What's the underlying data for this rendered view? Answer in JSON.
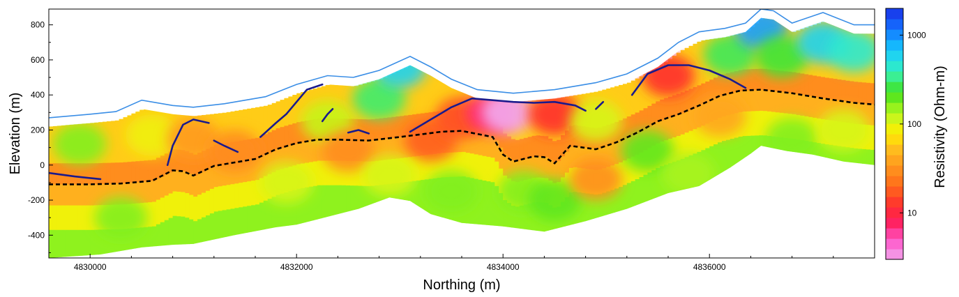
{
  "chart_data": {
    "type": "heatmap",
    "xlabel": "Northing (m)",
    "ylabel": "Elevation (m)",
    "colorbar_label": "Resistivity (Ohm-m)",
    "colorbar_scale": "log",
    "colorbar_range": [
      3,
      2000
    ],
    "colorbar_ticks": [
      {
        "value": 10,
        "label": "10"
      },
      {
        "value": 100,
        "label": "100"
      },
      {
        "value": 1000,
        "label": "1000"
      }
    ],
    "xlim": [
      4829600,
      4837600
    ],
    "ylim": [
      -530,
      890
    ],
    "x_ticks": [
      {
        "value": 4830000,
        "label": "4830000"
      },
      {
        "value": 4832000,
        "label": "4832000"
      },
      {
        "value": 4834000,
        "label": "4834000"
      },
      {
        "value": 4836000,
        "label": "4836000"
      }
    ],
    "y_ticks": [
      {
        "value": 800,
        "label": "800"
      },
      {
        "value": 600,
        "label": "600"
      },
      {
        "value": 400,
        "label": "400"
      },
      {
        "value": 200,
        "label": "200"
      },
      {
        "value": 0,
        "label": "0"
      },
      {
        "value": -200,
        "label": "-200"
      },
      {
        "value": -400,
        "label": "-400"
      }
    ],
    "grid": false,
    "colors": {
      "topography": "#3a8ee6",
      "interpreted_lines": "#1a1a8c",
      "dashed_boundary": "#000000"
    },
    "topography": [
      [
        4829600,
        270
      ],
      [
        4830000,
        290
      ],
      [
        4830250,
        305
      ],
      [
        4830500,
        370
      ],
      [
        4830800,
        340
      ],
      [
        4831000,
        330
      ],
      [
        4831300,
        350
      ],
      [
        4831700,
        390
      ],
      [
        4832000,
        460
      ],
      [
        4832300,
        510
      ],
      [
        4832550,
        500
      ],
      [
        4832800,
        540
      ],
      [
        4833100,
        620
      ],
      [
        4833300,
        560
      ],
      [
        4833500,
        490
      ],
      [
        4833750,
        430
      ],
      [
        4834100,
        410
      ],
      [
        4834500,
        430
      ],
      [
        4834900,
        470
      ],
      [
        4835200,
        520
      ],
      [
        4835500,
        610
      ],
      [
        4835700,
        700
      ],
      [
        4835900,
        760
      ],
      [
        4836150,
        780
      ],
      [
        4836350,
        810
      ],
      [
        4836500,
        890
      ],
      [
        4836620,
        880
      ],
      [
        4836800,
        810
      ],
      [
        4837100,
        870
      ],
      [
        4837400,
        800
      ],
      [
        4837600,
        800
      ]
    ],
    "section_bottom": [
      [
        4829600,
        -530
      ],
      [
        4830100,
        -510
      ],
      [
        4830500,
        -470
      ],
      [
        4830800,
        -455
      ],
      [
        4831000,
        -450
      ],
      [
        4831400,
        -400
      ],
      [
        4831800,
        -355
      ],
      [
        4832000,
        -340
      ],
      [
        4832200,
        -310
      ],
      [
        4832600,
        -250
      ],
      [
        4832900,
        -185
      ],
      [
        4833100,
        -205
      ],
      [
        4833300,
        -280
      ],
      [
        4833600,
        -330
      ],
      [
        4834000,
        -350
      ],
      [
        4834400,
        -380
      ],
      [
        4834800,
        -320
      ],
      [
        4835200,
        -250
      ],
      [
        4835600,
        -160
      ],
      [
        4835900,
        -120
      ],
      [
        4836200,
        -15
      ],
      [
        4836400,
        65
      ],
      [
        4836500,
        110
      ],
      [
        4836750,
        80
      ],
      [
        4837000,
        60
      ],
      [
        4837300,
        20
      ],
      [
        4837600,
        0
      ]
    ],
    "dashed_boundary": [
      [
        4829600,
        -110
      ],
      [
        4830000,
        -110
      ],
      [
        4830300,
        -105
      ],
      [
        4830600,
        -90
      ],
      [
        4830800,
        -30
      ],
      [
        4830900,
        -35
      ],
      [
        4831000,
        -60
      ],
      [
        4831200,
        -5
      ],
      [
        4831400,
        15
      ],
      [
        4831600,
        35
      ],
      [
        4831800,
        90
      ],
      [
        4832000,
        125
      ],
      [
        4832200,
        145
      ],
      [
        4832400,
        145
      ],
      [
        4832700,
        140
      ],
      [
        4833000,
        160
      ],
      [
        4833200,
        175
      ],
      [
        4833400,
        190
      ],
      [
        4833600,
        195
      ],
      [
        4833900,
        160
      ],
      [
        4834000,
        60
      ],
      [
        4834100,
        20
      ],
      [
        4834300,
        50
      ],
      [
        4834400,
        45
      ],
      [
        4834500,
        10
      ],
      [
        4834650,
        110
      ],
      [
        4834900,
        90
      ],
      [
        4835100,
        130
      ],
      [
        4835300,
        185
      ],
      [
        4835500,
        250
      ],
      [
        4835700,
        290
      ],
      [
        4835900,
        340
      ],
      [
        4836100,
        395
      ],
      [
        4836300,
        425
      ],
      [
        4836500,
        430
      ],
      [
        4836800,
        410
      ],
      [
        4837100,
        380
      ],
      [
        4837400,
        355
      ],
      [
        4837600,
        345
      ]
    ],
    "interpreted_lines": [
      [
        [
          4829600,
          -45
        ],
        [
          4829850,
          -65
        ],
        [
          4830100,
          -80
        ]
      ],
      [
        [
          4830750,
          0
        ],
        [
          4830800,
          110
        ],
        [
          4830900,
          230
        ],
        [
          4831000,
          260
        ],
        [
          4831150,
          240
        ]
      ],
      [
        [
          4831200,
          140
        ],
        [
          4831300,
          110
        ],
        [
          4831430,
          75
        ]
      ],
      [
        [
          4831650,
          160
        ],
        [
          4831800,
          240
        ],
        [
          4831900,
          290
        ],
        [
          4832000,
          360
        ],
        [
          4832100,
          430
        ],
        [
          4832250,
          460
        ]
      ],
      [
        [
          4832250,
          250
        ],
        [
          4832300,
          290
        ],
        [
          4832350,
          320
        ]
      ],
      [
        [
          4832500,
          185
        ],
        [
          4832600,
          200
        ],
        [
          4832700,
          180
        ]
      ],
      [
        [
          4833100,
          190
        ],
        [
          4833300,
          260
        ],
        [
          4833500,
          330
        ],
        [
          4833700,
          380
        ],
        [
          4833900,
          370
        ],
        [
          4834100,
          360
        ],
        [
          4834300,
          355
        ],
        [
          4834500,
          360
        ],
        [
          4834700,
          340
        ],
        [
          4834800,
          310
        ]
      ],
      [
        [
          4834900,
          320
        ],
        [
          4834970,
          360
        ]
      ],
      [
        [
          4835250,
          400
        ],
        [
          4835400,
          520
        ],
        [
          4835600,
          570
        ],
        [
          4835800,
          570
        ],
        [
          4836000,
          540
        ],
        [
          4836200,
          490
        ],
        [
          4836350,
          440
        ]
      ]
    ],
    "anomalies": [
      {
        "x": 4829900,
        "y": 120,
        "value": 170
      },
      {
        "x": 4830600,
        "y": 170,
        "value": 90
      },
      {
        "x": 4831000,
        "y": 150,
        "value": 35
      },
      {
        "x": 4831400,
        "y": 80,
        "value": 30
      },
      {
        "x": 4831900,
        "y": -100,
        "value": 110
      },
      {
        "x": 4832300,
        "y": 250,
        "value": 120
      },
      {
        "x": 4832500,
        "y": 80,
        "value": 30
      },
      {
        "x": 4832800,
        "y": 380,
        "value": 300
      },
      {
        "x": 4833000,
        "y": 560,
        "value": 600
      },
      {
        "x": 4833300,
        "y": 140,
        "value": 18
      },
      {
        "x": 4833600,
        "y": 270,
        "value": 16
      },
      {
        "x": 4833900,
        "y": 300,
        "value": 7
      },
      {
        "x": 4834050,
        "y": 300,
        "value": 3
      },
      {
        "x": 4834500,
        "y": 290,
        "value": 12
      },
      {
        "x": 4834200,
        "y": -150,
        "value": 170
      },
      {
        "x": 4834500,
        "y": -200,
        "value": 200
      },
      {
        "x": 4834900,
        "y": 250,
        "value": 110
      },
      {
        "x": 4834900,
        "y": -80,
        "value": 30
      },
      {
        "x": 4835400,
        "y": 80,
        "value": 200
      },
      {
        "x": 4835600,
        "y": 510,
        "value": 12
      },
      {
        "x": 4836100,
        "y": 280,
        "value": 40
      },
      {
        "x": 4836200,
        "y": 630,
        "value": 280
      },
      {
        "x": 4836500,
        "y": 780,
        "value": 900
      },
      {
        "x": 4836700,
        "y": 620,
        "value": 250
      },
      {
        "x": 4837100,
        "y": 700,
        "value": 600
      },
      {
        "x": 4837400,
        "y": 650,
        "value": 450
      },
      {
        "x": 4836800,
        "y": 150,
        "value": 170
      },
      {
        "x": 4837300,
        "y": 200,
        "value": 110
      },
      {
        "x": 4830300,
        "y": -300,
        "value": 170
      },
      {
        "x": 4832900,
        "y": -60,
        "value": 110
      },
      {
        "x": 4833500,
        "y": -150,
        "value": 170
      },
      {
        "x": 4835800,
        "y": -50,
        "value": 140
      }
    ]
  }
}
